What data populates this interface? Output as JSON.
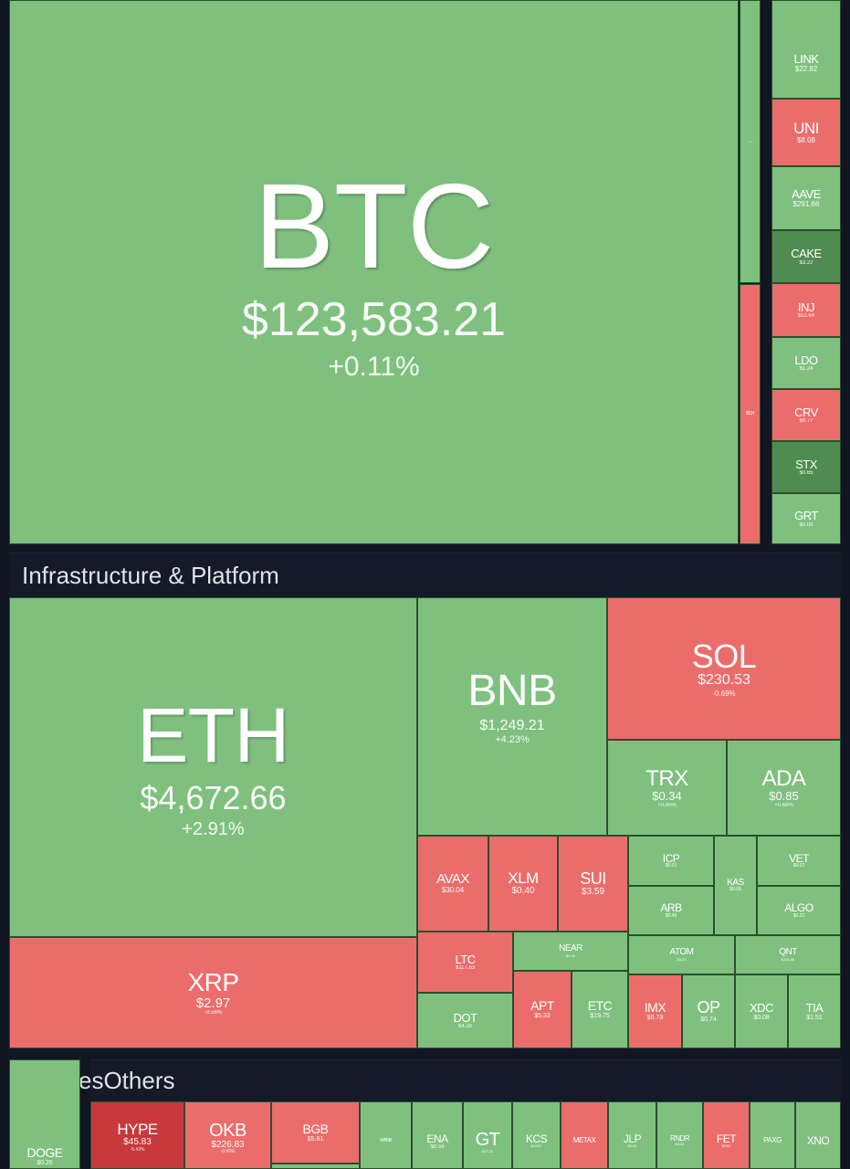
{
  "groups": {
    "infra": "Infrastructure & Platform",
    "others": "esOthers"
  },
  "colors": {
    "up": "#7fc07f",
    "down": "#ea6d6c",
    "up_dark": "#4f8c50",
    "down_dark": "#c8393c",
    "background": "#111622"
  },
  "top": {
    "btc": {
      "symbol": "BTC",
      "price": "$123,583.21",
      "change": "+0.11%"
    },
    "thin_top": {
      "symbol": "—"
    },
    "thin_bottom": {
      "symbol": "BCH"
    },
    "defi": [
      {
        "symbol": "LINK",
        "price": "$22.82"
      },
      {
        "symbol": "UNI",
        "price": "$8.08"
      },
      {
        "symbol": "AAVE",
        "price": "$291.66"
      },
      {
        "symbol": "CAKE",
        "price": "$3.22"
      },
      {
        "symbol": "INJ",
        "price": "$12.64"
      },
      {
        "symbol": "LDO",
        "price": "$1.24"
      },
      {
        "symbol": "CRV",
        "price": "$0.77"
      },
      {
        "symbol": "STX",
        "price": "$0.65"
      },
      {
        "symbol": "GRT",
        "price": "$0.09"
      }
    ]
  },
  "infra": {
    "eth": {
      "symbol": "ETH",
      "price": "$4,672.66",
      "change": "+2.91%"
    },
    "bnb": {
      "symbol": "BNB",
      "price": "$1,249.21",
      "change": "+4.23%"
    },
    "sol": {
      "symbol": "SOL",
      "price": "$230.53",
      "change": "-0.69%"
    },
    "trx": {
      "symbol": "TRX",
      "price": "$0.34",
      "change": "+0.45%"
    },
    "ada": {
      "symbol": "ADA",
      "price": "$0.85",
      "change": "+0.68%"
    },
    "xrp": {
      "symbol": "XRP",
      "price": "$2.97",
      "change": "-0.56%"
    },
    "avax": {
      "symbol": "AVAX",
      "price": "$30.04"
    },
    "xlm": {
      "symbol": "XLM",
      "price": "$0.40"
    },
    "sui": {
      "symbol": "SUI",
      "price": "$3.59"
    },
    "icp": {
      "symbol": "ICP",
      "price": "$5.01"
    },
    "kas": {
      "symbol": "KAS",
      "price": "$0.08"
    },
    "vet": {
      "symbol": "VET",
      "price": "$0.02"
    },
    "arb": {
      "symbol": "ARB",
      "price": "$0.46"
    },
    "algo": {
      "symbol": "ALGO",
      "price": "$0.22"
    },
    "ltc": {
      "symbol": "LTC",
      "price": "$117.63"
    },
    "near": {
      "symbol": "NEAR",
      "price": "$2.98"
    },
    "atom": {
      "symbol": "ATOM",
      "price": "$4.21"
    },
    "qnt": {
      "symbol": "QNT",
      "price": "$105.46"
    },
    "dot": {
      "symbol": "DOT",
      "price": "$4.28"
    },
    "apt": {
      "symbol": "APT",
      "price": "$5.33"
    },
    "etc": {
      "symbol": "ETC",
      "price": "$19.75"
    },
    "imx": {
      "symbol": "IMX",
      "price": "$0.73"
    },
    "op": {
      "symbol": "OP",
      "price": "$0.74"
    },
    "xdc": {
      "symbol": "XDC",
      "price": "$0.08"
    },
    "tia": {
      "symbol": "TIA",
      "price": "$1.51"
    }
  },
  "others": {
    "doge": {
      "symbol": "DOGE",
      "price": "$0.26"
    },
    "hype": {
      "symbol": "HYPE",
      "price": "$45.83",
      "change": "-5.43%"
    },
    "okb": {
      "symbol": "OKB",
      "price": "$226.83",
      "change": "-0.99%"
    },
    "bgb": {
      "symbol": "BGB",
      "price": "$5.61"
    },
    "small1": {
      "symbol": "WBNB"
    },
    "ena": {
      "symbol": "ENA",
      "price": "$0.59"
    },
    "gt": {
      "symbol": "GT",
      "price": "$17.22"
    },
    "kcs": {
      "symbol": "KCS",
      "price": "$14.87"
    },
    "metax": {
      "symbol": "METAX"
    },
    "jlp": {
      "symbol": "JLP",
      "price": "$5.65"
    },
    "rndr": {
      "symbol": "RNDR",
      "price": "$3.34"
    },
    "fet": {
      "symbol": "FET",
      "price": "$0.62"
    },
    "paxg": {
      "symbol": "PAXG"
    },
    "xno": {
      "symbol": "XNO"
    }
  }
}
